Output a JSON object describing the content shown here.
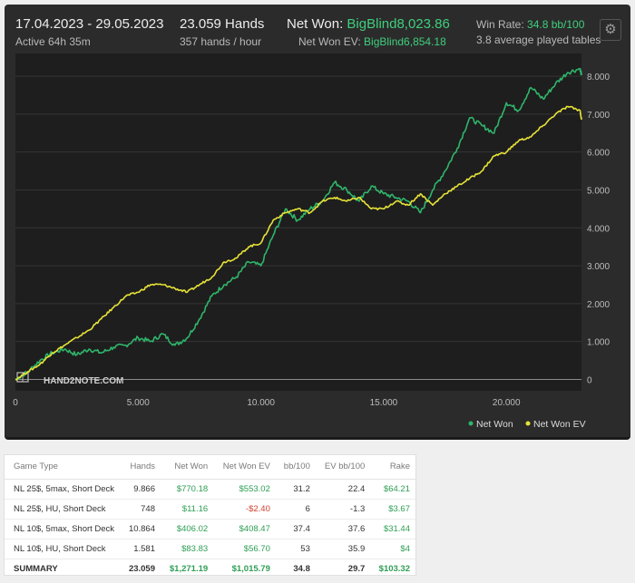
{
  "header": {
    "date_range": "17.04.2023 - 29.05.2023",
    "active_time": "Active 64h 35m",
    "hands_total": "23.059 Hands",
    "hands_rate": "357 hands / hour",
    "net_won_label": "Net Won: ",
    "net_won_value": "BigBlind8,023.86",
    "net_won_ev_label": "Net Won  EV: ",
    "net_won_ev_value": "BigBlind6,854.18",
    "win_rate_label": "Win Rate: ",
    "win_rate_value": "34.8 bb/100",
    "avg_tables": "3.8 average played tables",
    "settings_icon": "gear-icon"
  },
  "chart_data": {
    "type": "line",
    "x_ticks": [
      "0",
      "5.000",
      "10.000",
      "15.000",
      "20.000"
    ],
    "y_ticks": [
      "0",
      "1.000",
      "2.000",
      "3.000",
      "4.000",
      "5.000",
      "6.000",
      "7.000",
      "8.000"
    ],
    "xlim": [
      0,
      23059
    ],
    "ylim": [
      -300,
      8600
    ],
    "y_axis_side": "right",
    "grid": "horizontal",
    "watermark": "HAND2NOTE.COM",
    "legend_position": "bottom-right",
    "series": [
      {
        "name": "Net Won",
        "color": "#2fb56a",
        "x": [
          0,
          500,
          1000,
          1500,
          2000,
          2500,
          3000,
          3500,
          4000,
          4500,
          5000,
          5500,
          6000,
          6500,
          7000,
          7500,
          8000,
          8500,
          9000,
          9500,
          10000,
          10500,
          11000,
          11500,
          12000,
          12500,
          13000,
          13500,
          14000,
          14500,
          15000,
          15500,
          16000,
          16500,
          17000,
          17500,
          18000,
          18500,
          19000,
          19500,
          20000,
          20500,
          21000,
          21500,
          22000,
          22500,
          23000,
          23059
        ],
        "y": [
          0,
          200,
          500,
          700,
          800,
          650,
          800,
          700,
          850,
          900,
          1100,
          1000,
          1200,
          900,
          1100,
          1600,
          2200,
          2500,
          2700,
          3100,
          3000,
          3800,
          4500,
          4200,
          4500,
          4700,
          5200,
          5000,
          4700,
          5100,
          4900,
          4800,
          4700,
          4400,
          5000,
          5500,
          6100,
          6900,
          6700,
          6500,
          7300,
          7100,
          7700,
          7400,
          7800,
          8100,
          8200,
          8024
        ]
      },
      {
        "name": "Net Won  EV",
        "color": "#e6e337",
        "x": [
          0,
          500,
          1000,
          1500,
          2000,
          2500,
          3000,
          3500,
          4000,
          4500,
          5000,
          5500,
          6000,
          6500,
          7000,
          7500,
          8000,
          8500,
          9000,
          9500,
          10000,
          10500,
          11000,
          11500,
          12000,
          12500,
          13000,
          13500,
          14000,
          14500,
          15000,
          15500,
          16000,
          16500,
          17000,
          17500,
          18000,
          18500,
          19000,
          19500,
          20000,
          20500,
          21000,
          21500,
          22000,
          22500,
          23000,
          23059
        ],
        "y": [
          0,
          200,
          400,
          700,
          900,
          1100,
          1300,
          1600,
          1900,
          2200,
          2300,
          2500,
          2500,
          2400,
          2300,
          2500,
          2700,
          3100,
          3200,
          3500,
          3600,
          4200,
          4400,
          4500,
          4400,
          4700,
          4800,
          4700,
          4800,
          4500,
          4500,
          4700,
          4600,
          4900,
          4600,
          4900,
          5100,
          5300,
          5500,
          5900,
          6000,
          6300,
          6400,
          6700,
          7000,
          7200,
          7100,
          6854
        ]
      }
    ]
  },
  "legend": {
    "net_won": "Net Won",
    "net_won_ev": "Net Won  EV"
  },
  "table": {
    "headers": [
      "Game Type",
      "Hands",
      "Net Won",
      "Net Won  EV",
      "bb/100",
      "EV bb/100",
      "Rake"
    ],
    "rows": [
      {
        "game": "NL 25$, 5max, Short Deck",
        "hands": "9.866",
        "net": "$770.18",
        "ev": "$553.02",
        "bb": "31.2",
        "evbb": "22.4",
        "rake": "$64.21",
        "net_sign": "pos",
        "ev_sign": "pos"
      },
      {
        "game": "NL 25$, HU, Short Deck",
        "hands": "748",
        "net": "$11.16",
        "ev": "-$2.40",
        "bb": "6",
        "evbb": "-1.3",
        "rake": "$3.67",
        "net_sign": "pos",
        "ev_sign": "neg"
      },
      {
        "game": "NL 10$, 5max, Short Deck",
        "hands": "10.864",
        "net": "$406.02",
        "ev": "$408.47",
        "bb": "37.4",
        "evbb": "37.6",
        "rake": "$31.44",
        "net_sign": "pos",
        "ev_sign": "pos"
      },
      {
        "game": "NL 10$, HU, Short Deck",
        "hands": "1.581",
        "net": "$83.83",
        "ev": "$56.70",
        "bb": "53",
        "evbb": "35.9",
        "rake": "$4",
        "net_sign": "pos",
        "ev_sign": "pos"
      }
    ],
    "summary": {
      "game": "SUMMARY",
      "hands": "23.059",
      "net": "$1,271.19",
      "ev": "$1,015.79",
      "bb": "34.8",
      "evbb": "29.7",
      "rake": "$103.32"
    }
  }
}
